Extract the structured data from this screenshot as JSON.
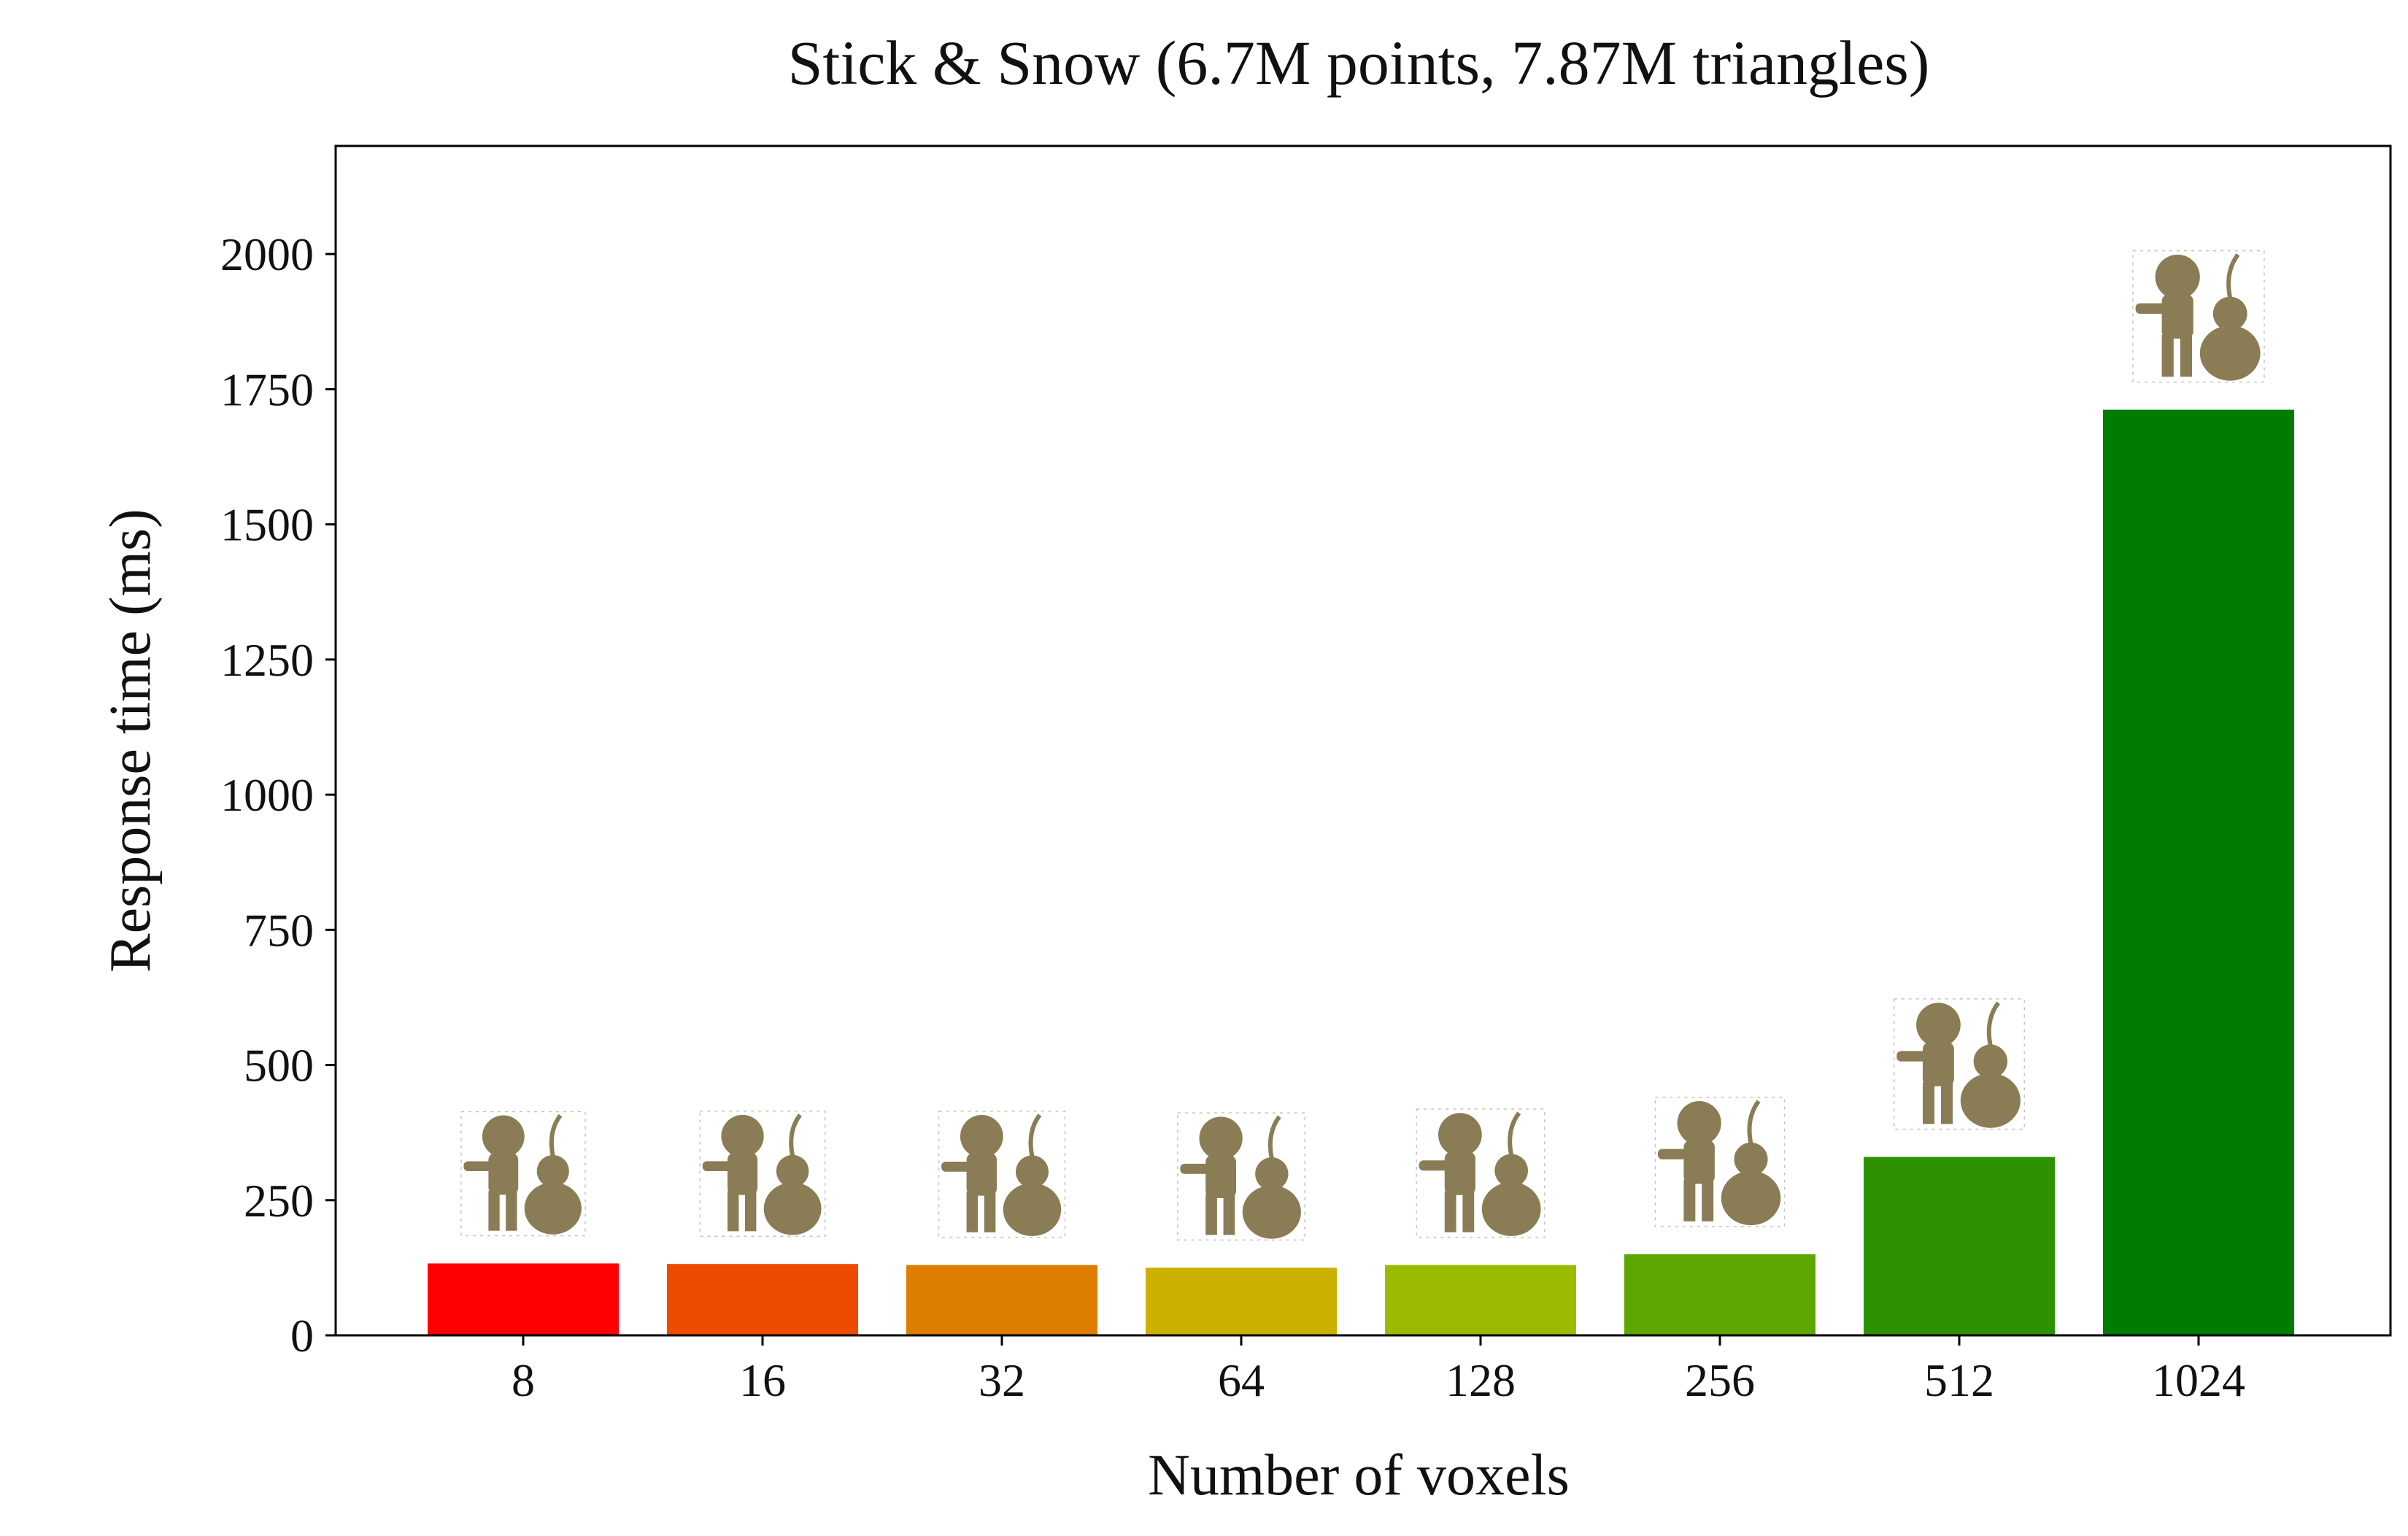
{
  "chart_data": {
    "type": "bar",
    "title": "Stick & Snow (6.7M points, 7.87M triangles)",
    "xlabel": "Number of voxels",
    "ylabel": "Response time (ms)",
    "categories": [
      "8",
      "16",
      "32",
      "64",
      "128",
      "256",
      "512",
      "1024"
    ],
    "values": [
      133,
      132,
      130,
      125,
      130,
      150,
      330,
      1712
    ],
    "bar_colors": [
      "#ff0000",
      "#ee4a00",
      "#dd7e00",
      "#ccb000",
      "#9bbb00",
      "#5ea600",
      "#2e9200",
      "#007d00"
    ],
    "ylim": [
      0,
      2200
    ],
    "yticks": [
      0,
      250,
      500,
      750,
      1000,
      1250,
      1500,
      1750,
      2000
    ],
    "ytick_labels": [
      "0",
      "250",
      "500",
      "750",
      "1000",
      "1250",
      "1500",
      "1750",
      "2000"
    ],
    "grid": false,
    "bar_thumbnail_icon": "stick-and-snow-model-render-icon",
    "thumbnail_color": "#8a7c54"
  }
}
